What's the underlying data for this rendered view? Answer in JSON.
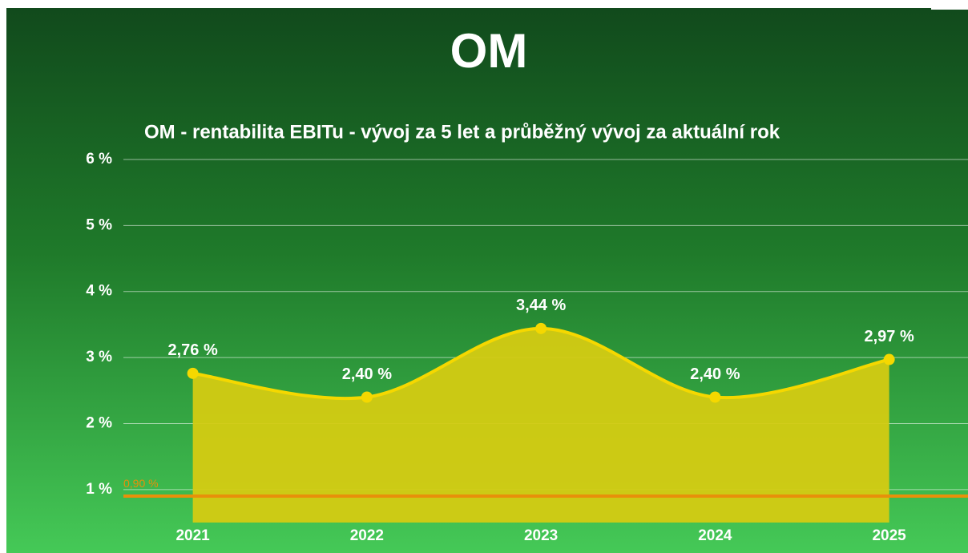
{
  "chart_data": {
    "type": "area",
    "title": "OM",
    "subtitle": "OM - rentabilita EBITu - vývoj za 5 let a průběžný vývoj za aktuální rok",
    "categories": [
      "2021",
      "2022",
      "2023",
      "2024",
      "2025"
    ],
    "values": [
      2.76,
      2.4,
      3.44,
      2.4,
      2.97
    ],
    "value_labels": [
      "2,76 %",
      "2,40 %",
      "3,44 %",
      "2,40 %",
      "2,97 %"
    ],
    "color": "#f5d800",
    "fill_color": "#d4cb12",
    "ylim": [
      0.5,
      6
    ],
    "yticks": [
      {
        "value": 1,
        "label": "1 %"
      },
      {
        "value": 2,
        "label": "2 %"
      },
      {
        "value": 3,
        "label": "3 %"
      },
      {
        "value": 4,
        "label": "4 %"
      },
      {
        "value": 5,
        "label": "5 %"
      },
      {
        "value": 6,
        "label": "6 %"
      }
    ],
    "grid": true,
    "reference_line": {
      "value": 0.9,
      "label": "0,90 %",
      "color": "#e8900a"
    }
  }
}
